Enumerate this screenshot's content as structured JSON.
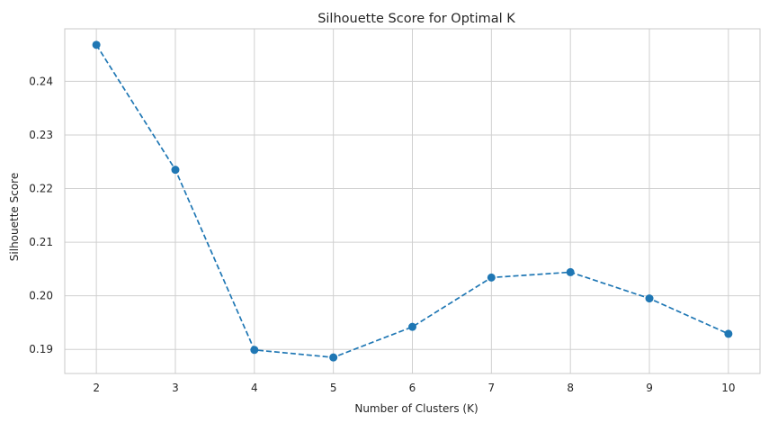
{
  "chart_data": {
    "type": "line",
    "title": "Silhouette Score for Optimal K",
    "xlabel": "Number of Clusters (K)",
    "ylabel": "Silhouette Score",
    "x": [
      2,
      3,
      4,
      5,
      6,
      7,
      8,
      9,
      10
    ],
    "series": [
      {
        "values": [
          0.2468,
          0.2235,
          0.1899,
          0.1885,
          0.1942,
          0.2034,
          0.2044,
          0.1995,
          0.1929
        ],
        "color": "#1f77b4",
        "line_style": "dashed",
        "marker": "circle"
      }
    ],
    "xlim": [
      1.6,
      10.4
    ],
    "ylim": [
      0.1855,
      0.2498
    ],
    "xticks": [
      "2",
      "3",
      "4",
      "5",
      "6",
      "7",
      "8",
      "9",
      "10"
    ],
    "yticks": [
      "0.19",
      "0.20",
      "0.21",
      "0.22",
      "0.23",
      "0.24"
    ],
    "ytick_values": [
      0.19,
      0.2,
      0.21,
      0.22,
      0.23,
      0.24
    ],
    "grid": true,
    "legend": "none",
    "colors": {
      "grid": "#d0d0d0",
      "frame": "#c8c8c8",
      "text": "#262626"
    }
  }
}
